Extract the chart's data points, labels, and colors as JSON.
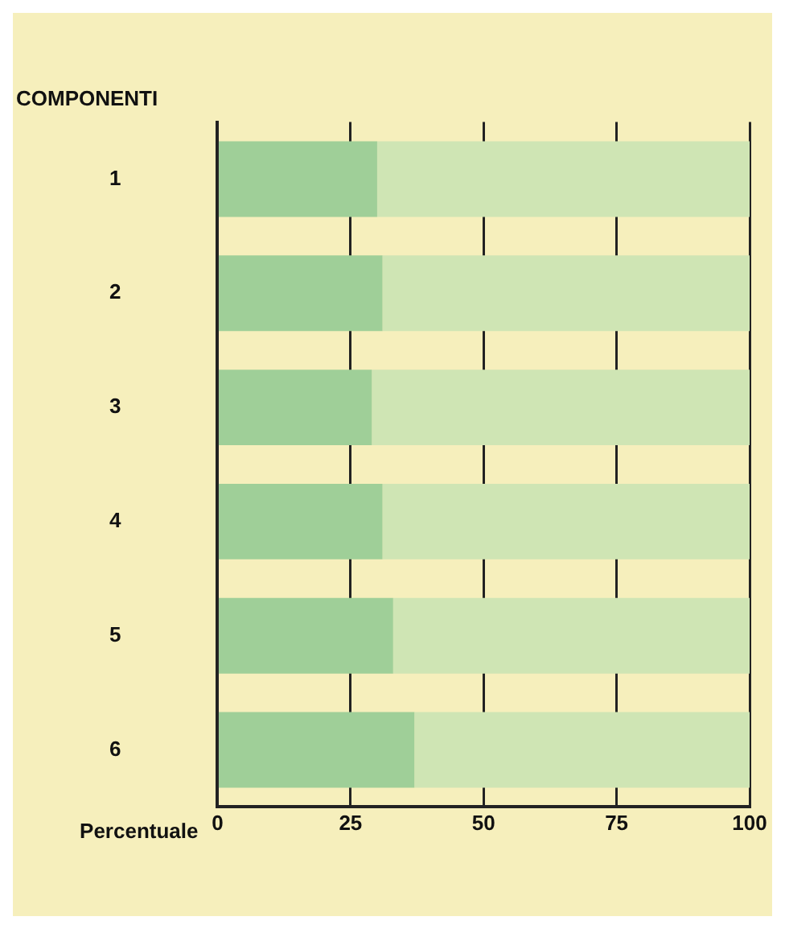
{
  "chart_data": {
    "type": "bar",
    "orientation": "horizontal",
    "stacked": true,
    "ylabel": "COMPONENTI",
    "xlabel": "Percentuale",
    "categories": [
      "1",
      "2",
      "3",
      "4",
      "5",
      "6"
    ],
    "series": [
      {
        "color": "#9fcf98",
        "values": [
          30,
          31,
          29,
          31,
          33,
          37
        ]
      },
      {
        "color": "#cfe5b4",
        "values": [
          70,
          69,
          71,
          69,
          67,
          63
        ]
      }
    ],
    "xlim": [
      0,
      100
    ],
    "xticks": [
      0,
      25,
      50,
      75,
      100
    ],
    "grid": "x",
    "legend": false
  }
}
